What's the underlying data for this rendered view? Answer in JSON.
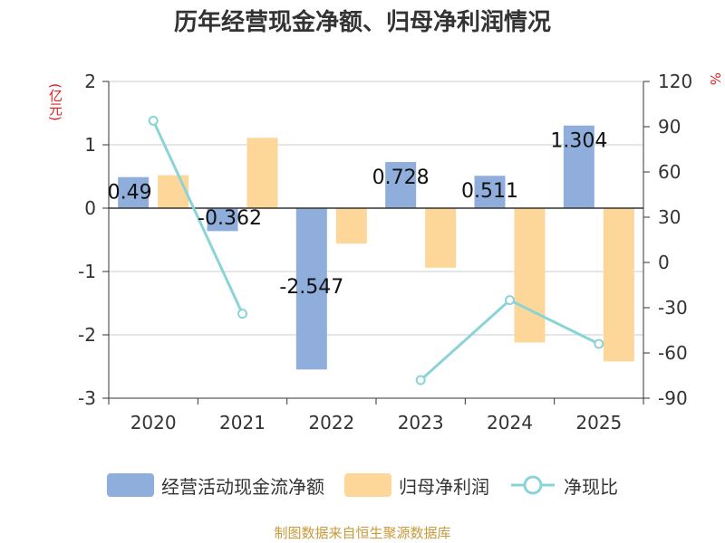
{
  "title": "历年经营现金净额、归母净利润情况",
  "unit_left": "(亿元)",
  "unit_right": "%",
  "source": "制图数据来自恒生聚源数据库",
  "colors": {
    "cash_flow": "#8faedb",
    "net_profit": "#fdd79a",
    "ratio": "#8ad4d8",
    "axis": "#333333",
    "grid": "#cccccc",
    "unit": "#e02020"
  },
  "chart_data": {
    "type": "bar",
    "title": "历年经营现金净额、归母净利润情况",
    "categories": [
      "2020",
      "2021",
      "2022",
      "2023",
      "2024",
      "2025"
    ],
    "ylim_left": [
      -3,
      2
    ],
    "yticks_left": [
      "2",
      "1",
      "0",
      "-1",
      "-2",
      "-3"
    ],
    "ylim_right": [
      -90,
      120
    ],
    "yticks_right": [
      "120",
      "90",
      "60",
      "30",
      "0",
      "-30",
      "-60",
      "-90"
    ],
    "series": [
      {
        "name": "经营活动现金流净额",
        "type": "bar",
        "axis": "left",
        "values": [
          0.49,
          -0.362,
          -2.547,
          0.728,
          0.511,
          1.304
        ],
        "labels": [
          "0.49",
          "-0.362",
          "-2.547",
          "0.728",
          "0.511",
          "1.304"
        ]
      },
      {
        "name": "归母净利润",
        "type": "bar",
        "axis": "left",
        "values": [
          0.52,
          1.11,
          -0.56,
          -0.94,
          -2.12,
          -2.42
        ]
      },
      {
        "name": "净现比",
        "type": "line",
        "axis": "right",
        "values": [
          94,
          -34,
          null,
          -78,
          -25,
          -54
        ]
      }
    ]
  }
}
